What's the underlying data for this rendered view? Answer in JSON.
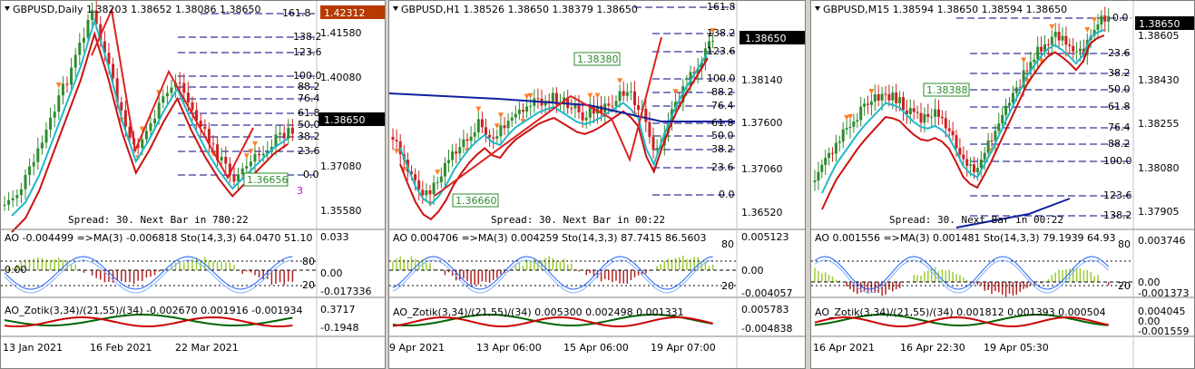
{
  "colors": {
    "bull": "#2e8b2e",
    "bear": "#cc2222",
    "ma_fast": "#22b8c8",
    "ma_slow": "#cc1111",
    "ma_blue": "#1020a0",
    "fibo": "#000080",
    "zz": "#dd2222",
    "ao_up": "#9acd32",
    "ao_down": "#b22222",
    "frac": "#ff7f27",
    "zotik_g": "#006400",
    "zotik_r": "#cc0000"
  },
  "panels": [
    {
      "title": "GBPUSD,Daily  1.38203 1.38652 1.38086 1.38650",
      "price_labels": [
        "1.41580",
        "1.40080",
        "1.38650",
        "1.37080",
        "1.35580"
      ],
      "top_label": "1.42312",
      "current_price": "1.38650",
      "fib": [
        "161.8",
        "138.2",
        "123.6",
        "100.0",
        "88.2",
        "76.4",
        "61.8",
        "50.0",
        "38.2",
        "23.6",
        "0.0"
      ],
      "box_label": "1.36656",
      "spread": "Spread: 30. Next Bar in 780:22",
      "ao_header": "AO -0.004499 =>MA(3) -0.006818  Sto(14,3,3) 64.0470 51.10",
      "ao_labels": [
        "0.033",
        "0.00",
        "-0.017336",
        "0.00"
      ],
      "sto_labels": [
        "80",
        "20"
      ],
      "zotik_header": "AO_Zotik(3,34)/(21,55)/(34) -0.002670  0.001916 -0.001934",
      "zotik_labels": [
        "0.3717",
        "-0.1948"
      ],
      "dates": [
        "13 Jan 2021",
        "16 Feb 2021",
        "22 Mar 2021"
      ],
      "extra_label": "3"
    },
    {
      "title": "GBPUSD,H1  1.38526 1.38650 1.38379 1.38650",
      "price_labels": [
        "1.38140",
        "1.37600",
        "1.37060",
        "1.36520"
      ],
      "current_price": "1.38650",
      "fib": [
        "161.8",
        "138.2",
        "123.6",
        "100.0",
        "88.2",
        "76.4",
        "61.8",
        "50.0",
        "38.2",
        "23.6",
        "0.0"
      ],
      "box_label": "1.36660",
      "box_label2": "1.38380",
      "spread": "Spread: 30. Next Bar in 00:22",
      "ao_header": "AO 0.004706 =>MA(3) 0.004259  Sto(14,3,3) 87.7415 86.5603",
      "ao_labels": [
        "0.005123",
        "0.00",
        "-0.004057"
      ],
      "sto_labels": [
        "80",
        "20"
      ],
      "zotik_header": "AO_Zotik(3,34)/(21,55)/(34) 0.005300  0.002498 0.001331",
      "zotik_labels": [
        "0.005783",
        "-0.004838"
      ],
      "dates": [
        "9 Apr 2021",
        "13 Apr 06:00",
        "15 Apr 06:00",
        "19 Apr 07:00"
      ]
    },
    {
      "title": "GBPUSD,M15  1.38594 1.38650 1.38594 1.38650",
      "price_labels": [
        "1.38605",
        "1.38430",
        "1.38255",
        "1.38080",
        "1.37905"
      ],
      "current_price": "1.38650",
      "fib": [
        "0.0",
        "23.6",
        "38.2",
        "50.0",
        "61.8",
        "76.4",
        "88.2",
        "100.0",
        "123.6",
        "138.2"
      ],
      "box_label": "1.38388",
      "spread": "Spread: 30. Next Bar in 00:22",
      "ao_header": "AO 0.001556 =>MA(3) 0.001481  Sto(14,3,3) 79.1939 64.93",
      "ao_labels": [
        "0.003746",
        "0.00",
        "-0.001373"
      ],
      "sto_labels": [
        "80",
        "20"
      ],
      "zotik_header": "AO_Zotik(3,34)/(21,55)/(34) 0.001812  0.001393 0.000504",
      "zotik_labels": [
        "0.004045",
        "0.00",
        "-0.001559"
      ],
      "dates": [
        "16 Apr 2021",
        "16 Apr 22:30",
        "19 Apr 05:30"
      ]
    }
  ]
}
